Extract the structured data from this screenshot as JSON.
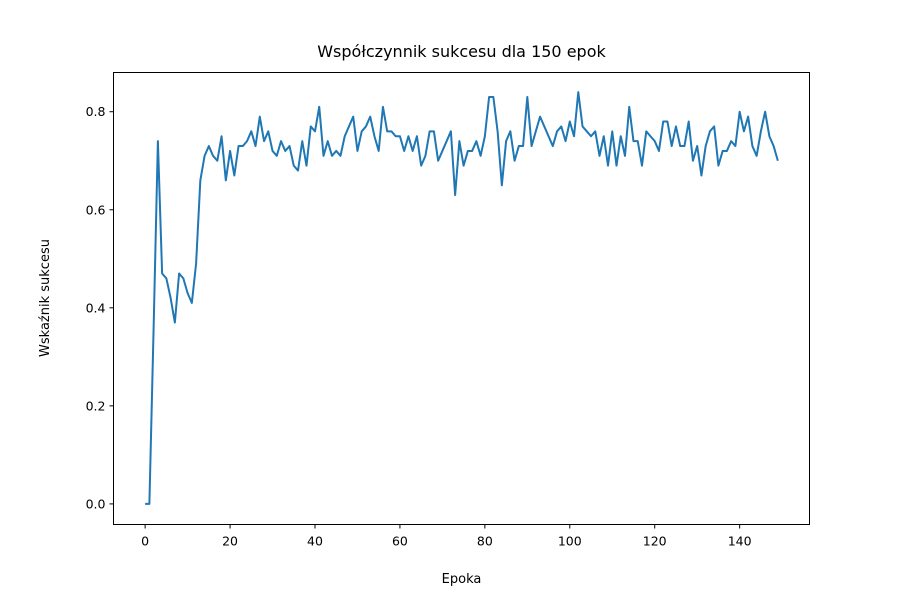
{
  "chart_data": {
    "type": "line",
    "title": "Współczynnik sukcesu dla 150 epok",
    "xlabel": "Epoka",
    "ylabel": "Wskaźnik sukcesu",
    "xlim": [
      -7.45,
      156.45
    ],
    "ylim": [
      -0.042,
      0.88
    ],
    "xticks": [
      0,
      20,
      40,
      60,
      80,
      100,
      120,
      140
    ],
    "yticks": [
      0.0,
      0.2,
      0.4,
      0.6,
      0.8
    ],
    "ytick_labels": [
      "0.0",
      "0.2",
      "0.4",
      "0.6",
      "0.8"
    ],
    "grid": false,
    "series": [
      {
        "color": "#1f77b4",
        "x_start": 0,
        "x_step": 1,
        "values": [
          0.0,
          0.0,
          0.36,
          0.74,
          0.47,
          0.46,
          0.42,
          0.37,
          0.47,
          0.46,
          0.43,
          0.41,
          0.49,
          0.66,
          0.71,
          0.73,
          0.71,
          0.7,
          0.75,
          0.66,
          0.72,
          0.67,
          0.73,
          0.73,
          0.74,
          0.76,
          0.73,
          0.79,
          0.74,
          0.76,
          0.72,
          0.71,
          0.74,
          0.72,
          0.73,
          0.69,
          0.68,
          0.74,
          0.69,
          0.77,
          0.76,
          0.81,
          0.71,
          0.74,
          0.71,
          0.72,
          0.71,
          0.75,
          0.77,
          0.79,
          0.72,
          0.76,
          0.77,
          0.79,
          0.75,
          0.72,
          0.81,
          0.76,
          0.76,
          0.75,
          0.75,
          0.72,
          0.75,
          0.72,
          0.75,
          0.69,
          0.71,
          0.76,
          0.76,
          0.7,
          0.72,
          0.74,
          0.76,
          0.63,
          0.74,
          0.69,
          0.72,
          0.72,
          0.74,
          0.71,
          0.75,
          0.83,
          0.83,
          0.76,
          0.65,
          0.74,
          0.76,
          0.7,
          0.73,
          0.73,
          0.83,
          0.73,
          0.76,
          0.79,
          0.77,
          0.75,
          0.73,
          0.76,
          0.77,
          0.74,
          0.78,
          0.75,
          0.84,
          0.77,
          0.76,
          0.75,
          0.76,
          0.71,
          0.75,
          0.69,
          0.76,
          0.69,
          0.75,
          0.71,
          0.81,
          0.74,
          0.74,
          0.69,
          0.76,
          0.75,
          0.74,
          0.72,
          0.78,
          0.78,
          0.73,
          0.77,
          0.73,
          0.73,
          0.78,
          0.7,
          0.73,
          0.67,
          0.73,
          0.76,
          0.77,
          0.69,
          0.72,
          0.72,
          0.74,
          0.73,
          0.8,
          0.76,
          0.79,
          0.73,
          0.71,
          0.76,
          0.8,
          0.75,
          0.73,
          0.7
        ]
      }
    ]
  }
}
